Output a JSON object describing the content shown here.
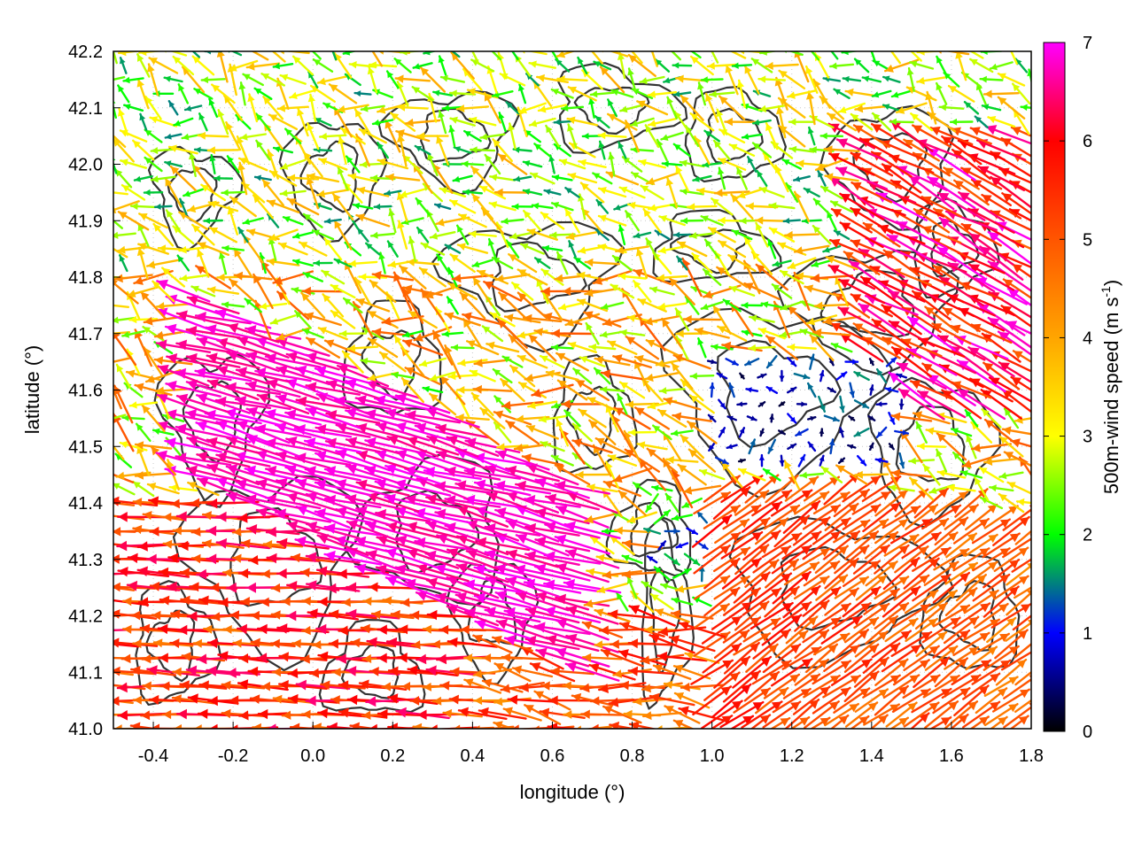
{
  "chart_data": {
    "type": "vector-field",
    "xlabel": "longitude (°)",
    "ylabel": "latitude (°)",
    "xlim": [
      -0.5,
      1.8
    ],
    "ylim": [
      41.0,
      42.2
    ],
    "x_ticks": [
      -0.4,
      -0.2,
      0.0,
      0.2,
      0.4,
      0.6,
      0.8,
      1.0,
      1.2,
      1.4,
      1.6,
      1.8
    ],
    "x_tick_labels": [
      "-0.4",
      "-0.2",
      "0.0",
      "0.2",
      "0.4",
      "0.6",
      "0.8",
      "1.0",
      "1.2",
      "1.4",
      "1.6",
      "1.8"
    ],
    "y_ticks": [
      41.0,
      41.1,
      41.2,
      41.3,
      41.4,
      41.5,
      41.6,
      41.7,
      41.8,
      41.9,
      42.0,
      42.1,
      42.2
    ],
    "y_tick_labels": [
      "41.0",
      "41.1",
      "41.2",
      "41.3",
      "41.4",
      "41.5",
      "41.6",
      "41.7",
      "41.8",
      "41.9",
      "42.0",
      "42.1",
      "42.2"
    ],
    "grid": true,
    "colorbar": {
      "label": "500m-wind speed (m s-1)",
      "label_main": "500m-wind speed (m s",
      "label_sup": "-1",
      "label_end": ")",
      "range": [
        0,
        7
      ],
      "ticks": [
        0,
        1,
        2,
        3,
        4,
        5,
        6,
        7
      ],
      "tick_labels": [
        "0",
        "1",
        "2",
        "3",
        "4",
        "5",
        "6",
        "7"
      ],
      "colormap": [
        {
          "value": 0,
          "color": "#000000"
        },
        {
          "value": 1,
          "color": "#0000ff"
        },
        {
          "value": 2,
          "color": "#00ff00"
        },
        {
          "value": 3,
          "color": "#ffff00"
        },
        {
          "value": 4,
          "color": "#ffa500"
        },
        {
          "value": 5,
          "color": "#ff5500"
        },
        {
          "value": 6,
          "color": "#ff0000"
        },
        {
          "value": 7,
          "color": "#ff00ff"
        }
      ]
    },
    "contour_color": "#333333",
    "vector_field_regimes": [
      {
        "region": "southwest plume (x -0.3 to 0.7, y 41.1 to 41.7)",
        "direction": "toward west-northwest",
        "speed_range": [
          6.5,
          7.0
        ]
      },
      {
        "region": "southern boundary (x -0.5 to 0.3, y 41.0 to 41.4)",
        "direction": "toward west",
        "speed_range": [
          4.5,
          6.5
        ]
      },
      {
        "region": "southeast (x 1.0 to 1.8, y 41.0 to 41.4)",
        "direction": "toward northeast",
        "speed_range": [
          4.0,
          6.0
        ]
      },
      {
        "region": "east (x 1.4 to 1.8, y 41.6 to 42.0)",
        "direction": "toward northwest",
        "speed_range": [
          5.0,
          7.0
        ]
      },
      {
        "region": "central calm (x 1.0 to 1.5, y 41.45 to 41.65)",
        "direction": "variable",
        "speed_range": [
          0.0,
          1.5
        ]
      },
      {
        "region": "north (x -0.5 to 1.8, y 41.8 to 42.2)",
        "direction": "toward west / north",
        "speed_range": [
          1.5,
          4.0
        ]
      }
    ]
  }
}
